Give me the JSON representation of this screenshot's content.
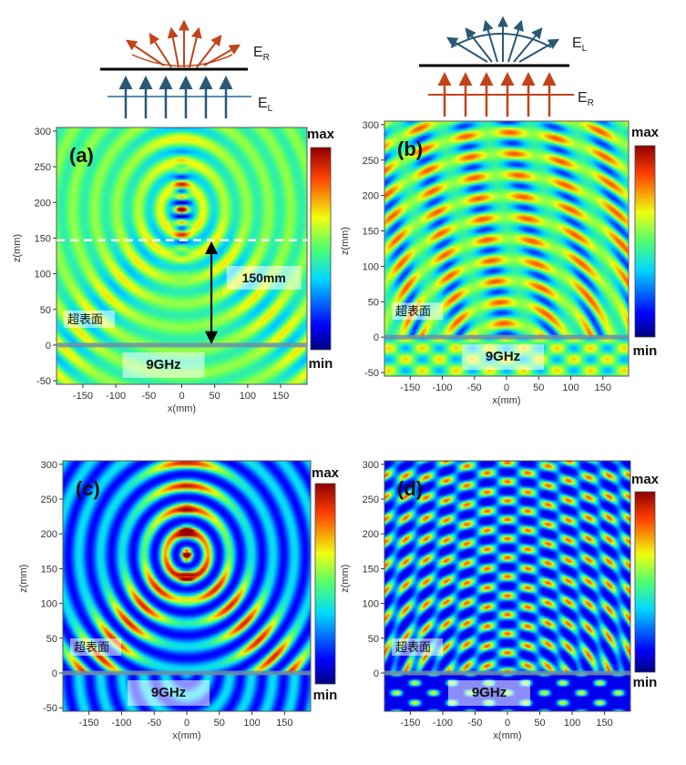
{
  "figure": {
    "top_left_schematic": {
      "upper_label": "E",
      "upper_sub": "R",
      "lower_label": "E",
      "lower_sub": "L"
    },
    "top_right_schematic": {
      "upper_label": "E",
      "upper_sub": "L",
      "lower_label": "E",
      "lower_sub": "R"
    },
    "colorbar_max": "max",
    "colorbar_min": "min",
    "surface_label": "超表面",
    "frequency_label": "9GHz",
    "distance_label": "150mm",
    "xlabel": "x(mm)",
    "ylabel": "z(mm)"
  },
  "chart_data": [
    {
      "type": "heatmap",
      "panel": "(a)",
      "xlabel": "x(mm)",
      "ylabel": "z(mm)",
      "xlim": [
        -190,
        190
      ],
      "ylim": [
        -55,
        305
      ],
      "xticks": [
        -150,
        -100,
        -50,
        0,
        50,
        100,
        150
      ],
      "yticks": [
        -50,
        0,
        50,
        100,
        150,
        200,
        250,
        300
      ],
      "focus": [
        0,
        190
      ],
      "annotations": [
        "超表面",
        "9GHz",
        "150mm"
      ],
      "colorbar": [
        "max",
        "min"
      ]
    },
    {
      "type": "heatmap",
      "panel": "(b)",
      "xlabel": "x(mm)",
      "ylabel": "z(mm)",
      "xlim": [
        -190,
        190
      ],
      "ylim": [
        -55,
        305
      ],
      "xticks": [
        -150,
        -100,
        -50,
        0,
        50,
        100,
        150
      ],
      "yticks": [
        -50,
        0,
        50,
        100,
        150,
        200,
        250,
        300
      ],
      "annotations": [
        "超表面",
        "9GHz"
      ],
      "colorbar": [
        "max",
        "min"
      ]
    },
    {
      "type": "heatmap",
      "panel": "(c)",
      "xlabel": "x(mm)",
      "ylabel": "z(mm)",
      "xlim": [
        -190,
        190
      ],
      "ylim": [
        -55,
        305
      ],
      "xticks": [
        -150,
        -100,
        -50,
        0,
        50,
        100,
        150
      ],
      "yticks": [
        -50,
        0,
        50,
        100,
        150,
        200,
        250,
        300
      ],
      "focus": [
        0,
        170
      ],
      "annotations": [
        "超表面",
        "9GHz"
      ],
      "colorbar": [
        "max",
        "min"
      ]
    },
    {
      "type": "heatmap",
      "panel": "(d)",
      "xlabel": "x(mm)",
      "ylabel": "z(mm)",
      "xlim": [
        -190,
        190
      ],
      "ylim": [
        -55,
        305
      ],
      "xticks": [
        -150,
        -100,
        -50,
        0,
        50,
        100,
        150
      ],
      "yticks": [
        0,
        50,
        100,
        150,
        200,
        250,
        300
      ],
      "annotations": [
        "超表面",
        "9GHz"
      ],
      "colorbar": [
        "max",
        "min"
      ]
    }
  ]
}
